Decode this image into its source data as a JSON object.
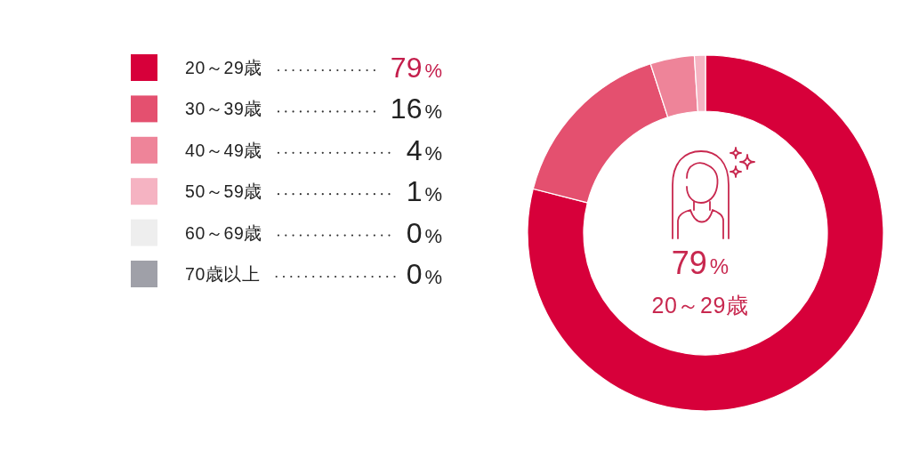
{
  "chart_data": {
    "type": "donut",
    "categories": [
      "20～29歳",
      "30～39歳",
      "40～49歳",
      "50～59歳",
      "60～69歳",
      "70歳以上"
    ],
    "values": [
      79,
      16,
      4,
      1,
      0,
      0
    ],
    "colors": [
      "#d7003a",
      "#e4506f",
      "#ee8499",
      "#f5b3c2",
      "#eeeeee",
      "#9fa0a8"
    ],
    "value_labels": [
      "79%",
      "16%",
      "4%",
      "1%",
      "0%",
      "0%"
    ],
    "annotations": [
      "79%",
      "20～29歳"
    ],
    "legend": "left"
  }
}
